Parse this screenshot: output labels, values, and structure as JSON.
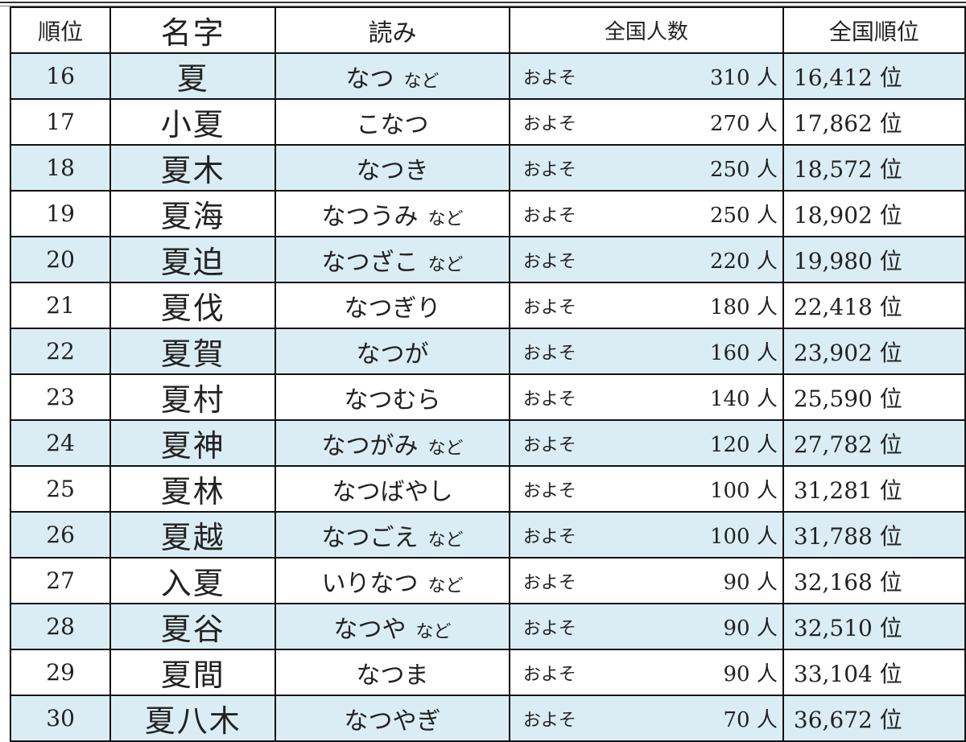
{
  "headers": {
    "rank": "順位",
    "name": "名字",
    "reading": "読み",
    "population": "全国人数",
    "national_rank": "全国順位"
  },
  "approx_label": "およそ",
  "person_unit": "人",
  "rank_unit": "位",
  "row_fill_color": "#daedf4",
  "rows": [
    {
      "rank": "16",
      "name": "夏",
      "reading": "なつ",
      "nado": "など",
      "population": "310",
      "national_rank": "16,412"
    },
    {
      "rank": "17",
      "name": "小夏",
      "reading": "こなつ",
      "nado": "",
      "population": "270",
      "national_rank": "17,862"
    },
    {
      "rank": "18",
      "name": "夏木",
      "reading": "なつき",
      "nado": "",
      "population": "250",
      "national_rank": "18,572"
    },
    {
      "rank": "19",
      "name": "夏海",
      "reading": "なつうみ",
      "nado": "など",
      "population": "250",
      "national_rank": "18,902"
    },
    {
      "rank": "20",
      "name": "夏迫",
      "reading": "なつざこ",
      "nado": "など",
      "population": "220",
      "national_rank": "19,980"
    },
    {
      "rank": "21",
      "name": "夏伐",
      "reading": "なつぎり",
      "nado": "",
      "population": "180",
      "national_rank": "22,418"
    },
    {
      "rank": "22",
      "name": "夏賀",
      "reading": "なつが",
      "nado": "",
      "population": "160",
      "national_rank": "23,902"
    },
    {
      "rank": "23",
      "name": "夏村",
      "reading": "なつむら",
      "nado": "",
      "population": "140",
      "national_rank": "25,590"
    },
    {
      "rank": "24",
      "name": "夏神",
      "reading": "なつがみ",
      "nado": "など",
      "population": "120",
      "national_rank": "27,782"
    },
    {
      "rank": "25",
      "name": "夏林",
      "reading": "なつばやし",
      "nado": "",
      "population": "100",
      "national_rank": "31,281"
    },
    {
      "rank": "26",
      "name": "夏越",
      "reading": "なつごえ",
      "nado": "など",
      "population": "100",
      "national_rank": "31,788"
    },
    {
      "rank": "27",
      "name": "入夏",
      "reading": "いりなつ",
      "nado": "など",
      "population": "90",
      "national_rank": "32,168"
    },
    {
      "rank": "28",
      "name": "夏谷",
      "reading": "なつや",
      "nado": "など",
      "population": "90",
      "national_rank": "32,510"
    },
    {
      "rank": "29",
      "name": "夏間",
      "reading": "なつま",
      "nado": "",
      "population": "90",
      "national_rank": "33,104"
    },
    {
      "rank": "30",
      "name": "夏八木",
      "reading": "なつやぎ",
      "nado": "",
      "population": "70",
      "national_rank": "36,672"
    }
  ]
}
